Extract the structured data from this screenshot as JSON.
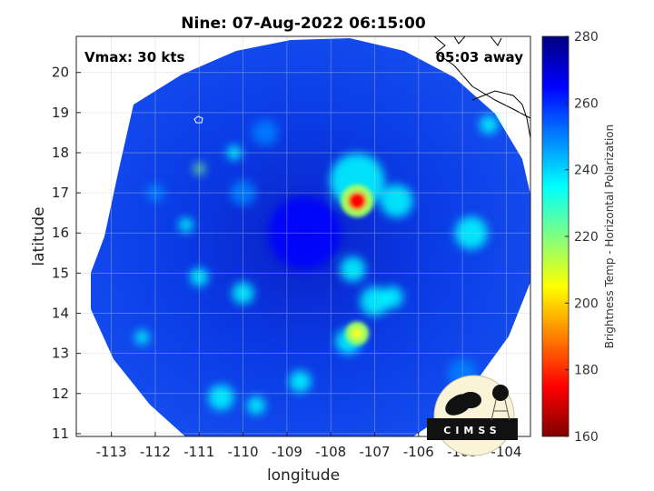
{
  "chart_data": {
    "type": "heatmap",
    "title": "Nine: 07-Aug-2022 06:15:00",
    "xlabel": "longitude",
    "ylabel": "latitude",
    "xlim": [
      -113.8,
      -103.45
    ],
    "ylim": [
      10.93,
      20.9
    ],
    "xticks": [
      -113,
      -112,
      -111,
      -110,
      -109,
      -108,
      -107,
      -106,
      -105,
      -104
    ],
    "yticks": [
      11,
      12,
      13,
      14,
      15,
      16,
      17,
      18,
      19,
      20
    ],
    "grid": true,
    "annotations": {
      "vmax": "Vmax: 30 kts",
      "away": "05:03 away"
    },
    "colorbar": {
      "label": "Brightness Temp - Horizontal Polarization",
      "range": [
        160,
        280
      ],
      "ticks": [
        160,
        180,
        200,
        220,
        240,
        260,
        280
      ],
      "colormap": [
        "#800000",
        "#ff0000",
        "#ff8000",
        "#ffff00",
        "#80ff80",
        "#00ffff",
        "#0080ff",
        "#0000ff",
        "#000080"
      ]
    },
    "features": [
      {
        "name": "warm core",
        "lon": -107.4,
        "lat": 16.8,
        "value": 185
      },
      {
        "name": "center",
        "lon": -108.6,
        "lat": 15.9,
        "value": 268
      },
      {
        "name": "rain band south",
        "lon": -107.4,
        "lat": 13.5,
        "value": 215
      }
    ],
    "logo": "CIMSS"
  }
}
